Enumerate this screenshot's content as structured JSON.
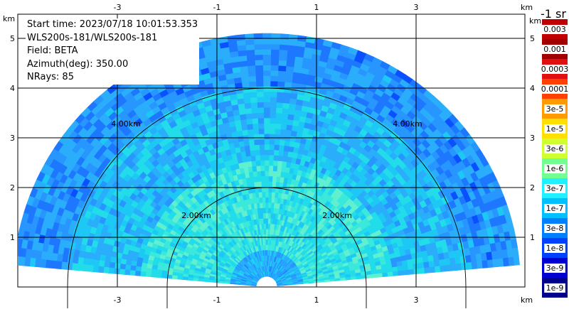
{
  "info": {
    "start_time": "Start time: 2023/07/18 10:01:53.353",
    "instrument": "WLS200s-181/WLS200s-181",
    "field": "Field: BETA",
    "azimuth": "Azimuth(deg): 350.00",
    "nrays": "NRays: 85"
  },
  "colorbar": {
    "title": "-1 sr",
    "labels": [
      "0.003",
      "0.001",
      "0.0003",
      "0.0001",
      "3e-5",
      "1e-5",
      "3e-6",
      "1e-6",
      "3e-7",
      "1e-7",
      "3e-8",
      "1e-8",
      "3e-9",
      "1e-9"
    ],
    "colors": [
      "#c00000",
      "#a00000",
      "#e01010",
      "#ff4000",
      "#ff9a00",
      "#ffe000",
      "#d0ff30",
      "#70ff90",
      "#20f0ff",
      "#00c0ff",
      "#0080ff",
      "#0040ff",
      "#0000d0",
      "#00008c"
    ]
  },
  "chart_data": {
    "type": "heatmap",
    "description_free": true,
    "x_unit": "km",
    "y_unit": "km",
    "x_ticks": [
      -3,
      -1,
      1,
      3
    ],
    "y_ticks": [
      1,
      2,
      3,
      4,
      5
    ],
    "xlim": [
      -5.4,
      4.7
    ],
    "ylim": [
      0,
      5.9
    ],
    "range_rings_km": [
      2.0,
      4.0
    ],
    "ring_labels": [
      "2.00km",
      "4.00km"
    ],
    "scan_max_range_km": 5.1,
    "scan_elevation_deg": [
      5,
      175
    ],
    "field": "BETA",
    "color_scale": "log",
    "color_range": [
      1e-09,
      0.003
    ],
    "dominant_values_by_range": [
      {
        "range_km": [
          0,
          0.7
        ],
        "value": 1e-07
      },
      {
        "range_km": [
          0.7,
          2.5
        ],
        "value": 3e-07
      },
      {
        "range_km": [
          2.5,
          4.0
        ],
        "value": 1e-07
      },
      {
        "range_km": [
          4.0,
          5.1
        ],
        "value": 3e-08
      }
    ]
  },
  "axis_unit_label": "km"
}
